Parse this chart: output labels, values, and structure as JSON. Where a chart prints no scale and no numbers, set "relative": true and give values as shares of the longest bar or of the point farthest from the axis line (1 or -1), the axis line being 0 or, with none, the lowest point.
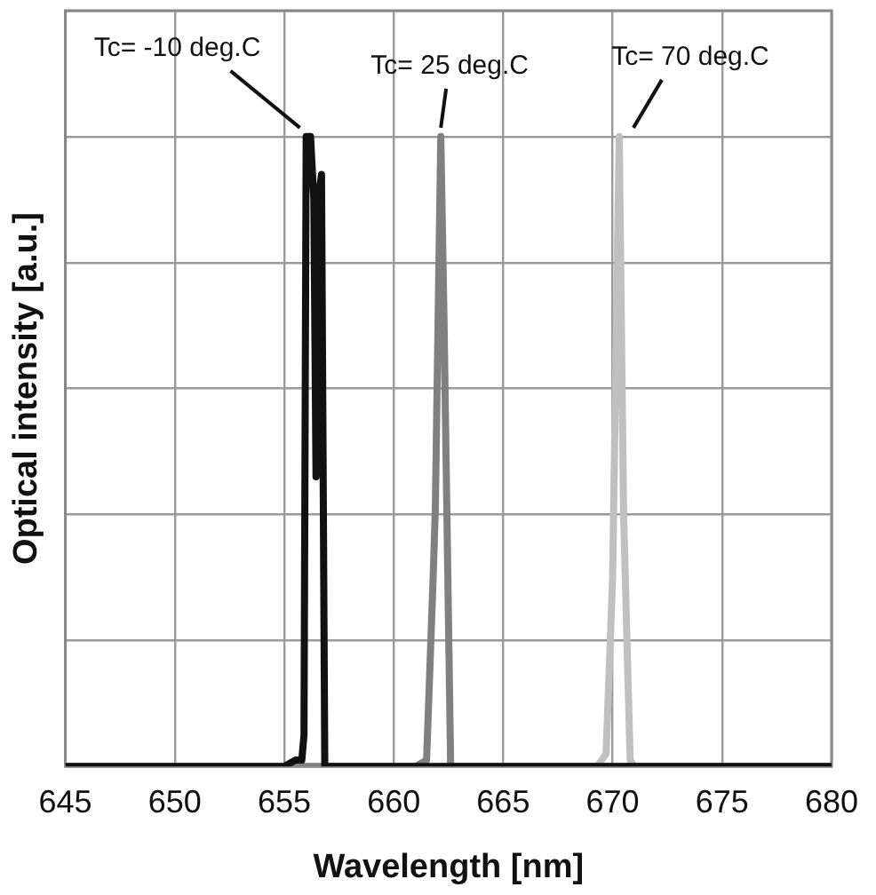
{
  "chart_data": {
    "type": "line",
    "xlabel": "Wavelength [nm]",
    "ylabel": "Optical intensity [a.u.]",
    "relative": true,
    "xlim": [
      645,
      680
    ],
    "xticks": [
      645,
      650,
      655,
      660,
      665,
      670,
      675,
      680
    ],
    "grid": true,
    "legend": false,
    "marker": "none",
    "line_style": "solid",
    "series": [
      {
        "color": "#111111",
        "x": [
          645,
          655,
          655.5,
          655.8,
          655.9,
          656.0,
          656.2,
          656.35,
          656.45,
          656.55,
          656.7,
          656.85,
          657.0,
          680
        ],
        "values": [
          0,
          0,
          0.01,
          0.01,
          0.05,
          1,
          1,
          0.9,
          0.46,
          0.9,
          0.94,
          0,
          0,
          0
        ]
      },
      {
        "color": "#808080",
        "x": [
          645,
          661,
          661.5,
          661.8,
          661.9,
          662.15,
          662.3,
          662.6,
          680
        ],
        "values": [
          0,
          0,
          0.01,
          0.3,
          0.41,
          1,
          0.7,
          0,
          0
        ]
      },
      {
        "color": "#c0c0c0",
        "x": [
          645,
          669.3,
          669.7,
          670.0,
          670.3,
          670.5,
          670.8,
          671,
          680
        ],
        "values": [
          0,
          0,
          0.02,
          0.3,
          1,
          0.4,
          0.01,
          0,
          0
        ]
      }
    ],
    "annotations": [
      {
        "text": "Tc= -10 deg.C",
        "x": 656.2,
        "y": 1
      },
      {
        "text": "Tc= 25 deg.C",
        "x": 662.15,
        "y": 1
      },
      {
        "text": "Tc= 70 deg.C",
        "x": 670.3,
        "y": 1
      }
    ]
  }
}
